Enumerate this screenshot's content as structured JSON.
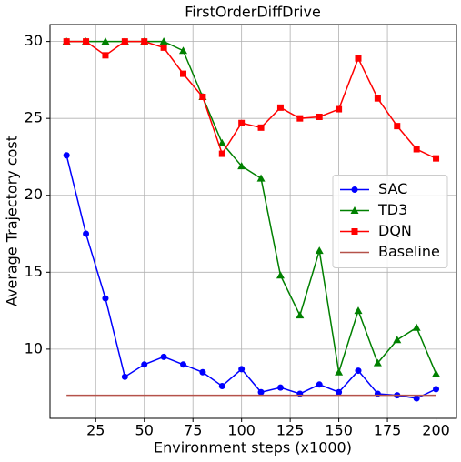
{
  "chart_data": {
    "type": "line",
    "title": "FirstOrderDiffDrive",
    "x_label": "Environment steps (x1000)",
    "y_label": "Average Trajectory cost",
    "x": [
      10,
      20,
      30,
      40,
      50,
      60,
      70,
      80,
      90,
      100,
      110,
      120,
      130,
      140,
      150,
      160,
      170,
      180,
      190,
      200
    ],
    "series": [
      {
        "name": "SAC",
        "color": "#0000ff",
        "marker": "circle",
        "values": [
          22.6,
          17.5,
          13.3,
          8.2,
          9.0,
          9.5,
          9.0,
          8.5,
          7.6,
          8.7,
          7.2,
          7.5,
          7.1,
          7.7,
          7.2,
          8.6,
          7.1,
          7.0,
          6.8,
          7.4
        ]
      },
      {
        "name": "TD3",
        "color": "#008000",
        "marker": "triangle",
        "values": [
          30,
          30,
          30,
          30,
          30,
          30,
          29.4,
          26.4,
          23.4,
          21.9,
          21.1,
          14.8,
          12.2,
          16.4,
          8.5,
          12.5,
          9.1,
          10.6,
          11.4,
          8.4
        ]
      },
      {
        "name": "DQN",
        "color": "#ff0000",
        "marker": "square",
        "values": [
          30,
          30,
          29.1,
          30,
          30,
          29.6,
          27.9,
          26.4,
          22.7,
          24.7,
          24.4,
          25.7,
          25.0,
          25.1,
          25.6,
          28.9,
          26.3,
          24.5,
          23.0,
          22.4
        ]
      },
      {
        "name": "Baseline",
        "color": "#b5524a",
        "marker": "none",
        "values": [
          7,
          7,
          7,
          7,
          7,
          7,
          7,
          7,
          7,
          7,
          7,
          7,
          7,
          7,
          7,
          7,
          7,
          7,
          7,
          7
        ]
      }
    ],
    "xlim": [
      1.5,
      210.5
    ],
    "ylim": [
      5.5,
      31.1
    ],
    "xticks": [
      25,
      50,
      75,
      100,
      125,
      150,
      175,
      200
    ],
    "yticks": [
      10,
      15,
      20,
      25,
      30
    ],
    "grid": true,
    "legend": "center right"
  }
}
